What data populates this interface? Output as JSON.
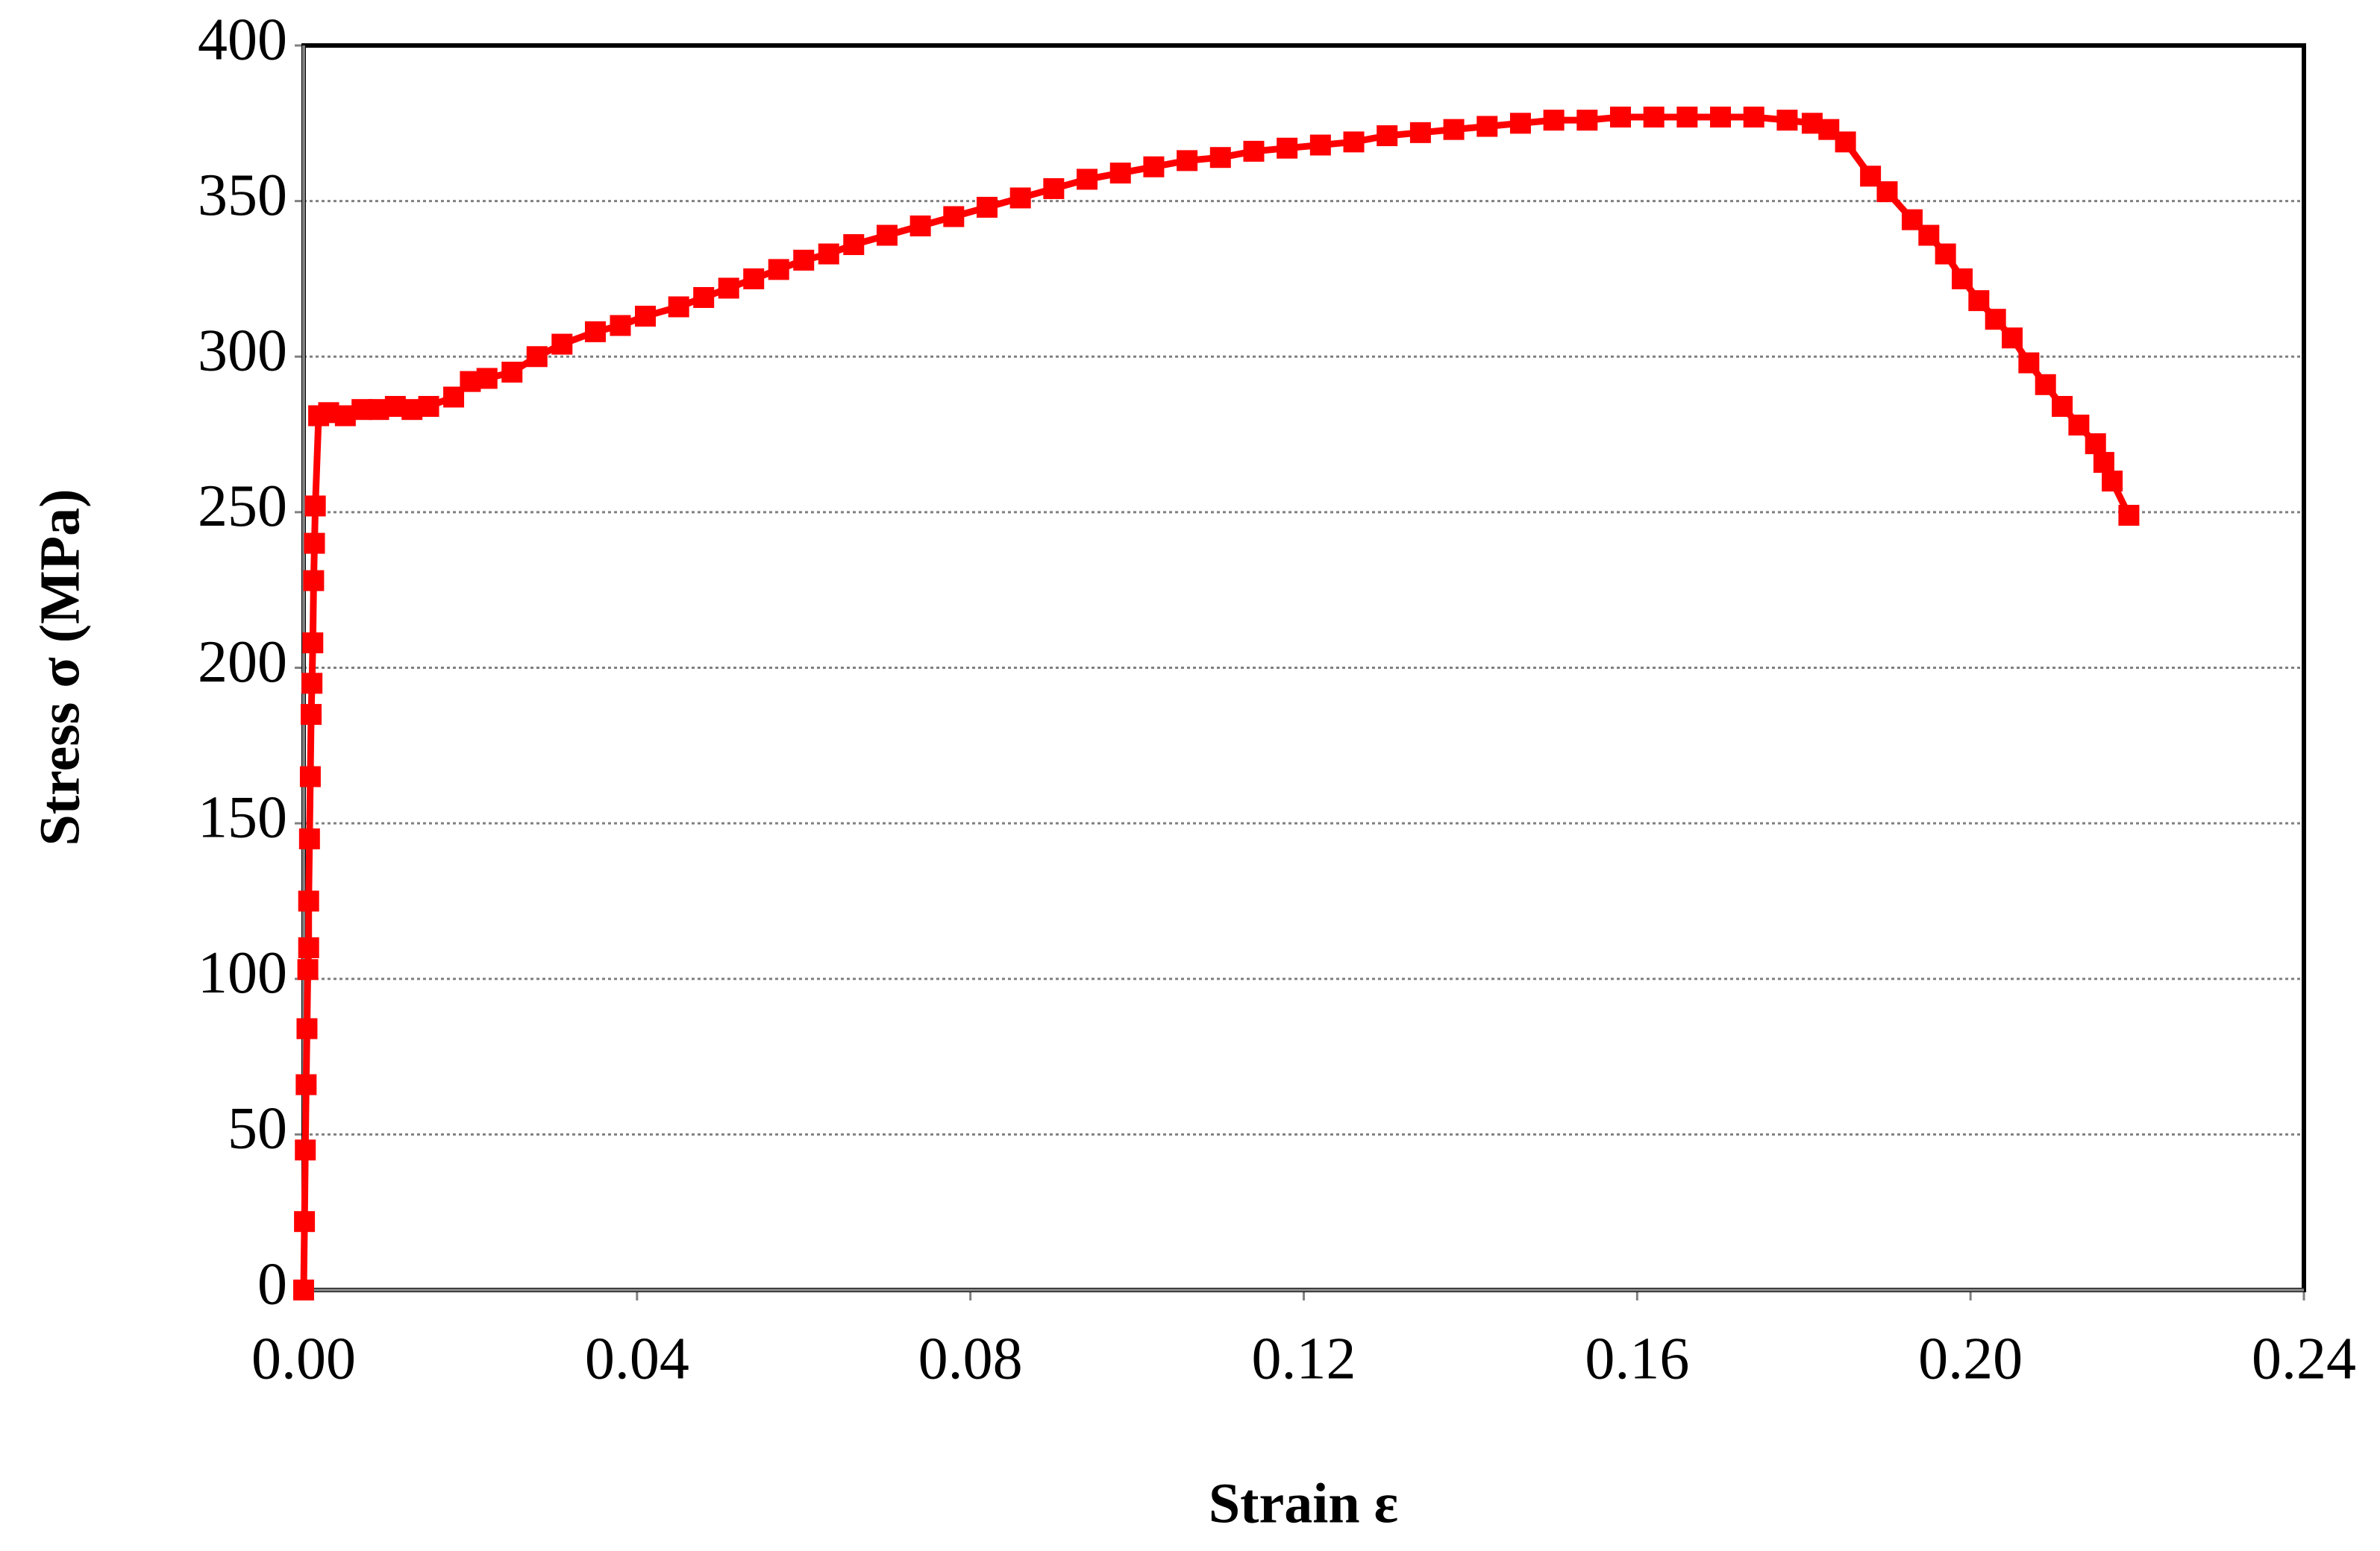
{
  "chart_data": {
    "type": "line",
    "x_label": "Strain  ε",
    "y_label": "Stress   σ (MPa)",
    "x": [
      0,
      0.0001,
      0.0002,
      0.0003,
      0.0004,
      0.0005,
      0.0006,
      0.0006,
      0.0007,
      0.0008,
      0.0009,
      0.001,
      0.0011,
      0.0012,
      0.0013,
      0.0014,
      0.0018,
      0.003,
      0.005,
      0.007,
      0.009,
      0.011,
      0.013,
      0.015,
      0.018,
      0.02,
      0.022,
      0.025,
      0.028,
      0.031,
      0.035,
      0.038,
      0.041,
      0.045,
      0.048,
      0.051,
      0.054,
      0.057,
      0.06,
      0.063,
      0.066,
      0.07,
      0.074,
      0.078,
      0.082,
      0.086,
      0.09,
      0.094,
      0.098,
      0.102,
      0.106,
      0.11,
      0.114,
      0.118,
      0.122,
      0.126,
      0.13,
      0.134,
      0.138,
      0.142,
      0.146,
      0.15,
      0.154,
      0.158,
      0.162,
      0.166,
      0.17,
      0.174,
      0.178,
      0.181,
      0.183,
      0.185,
      0.188,
      0.19,
      0.193,
      0.195,
      0.197,
      0.199,
      0.201,
      0.203,
      0.205,
      0.207,
      0.209,
      0.211,
      0.213,
      0.215,
      0.216,
      0.217,
      0.219
    ],
    "series": [
      {
        "name": "Stress",
        "color": "#ff0000",
        "values": [
          0,
          22,
          45,
          66,
          84,
          103,
          110,
          125,
          145,
          165,
          185,
          195,
          208,
          228,
          240,
          252,
          281,
          282,
          281,
          283,
          283,
          284,
          283,
          284,
          287,
          292,
          293,
          295,
          300,
          304,
          308,
          310,
          313,
          316,
          319,
          322,
          325,
          328,
          331,
          333,
          336,
          339,
          342,
          345,
          348,
          351,
          354,
          357,
          359,
          361,
          363,
          364,
          366,
          367,
          368,
          369,
          371,
          372,
          373,
          374,
          375,
          376,
          376,
          377,
          377,
          377,
          377,
          377,
          376,
          375,
          373,
          369,
          358,
          353,
          344,
          339,
          333,
          325,
          318,
          312,
          306,
          298,
          291,
          284,
          278,
          272,
          266,
          260,
          249
        ]
      }
    ],
    "xlim": [
      0,
      0.24
    ],
    "xticks": [
      {
        "value": 0,
        "label": "0.00"
      },
      {
        "value": 0.04,
        "label": "0.04"
      },
      {
        "value": 0.08,
        "label": "0.08"
      },
      {
        "value": 0.12,
        "label": "0.12"
      },
      {
        "value": 0.16,
        "label": "0.16"
      },
      {
        "value": 0.2,
        "label": "0.20"
      },
      {
        "value": 0.24,
        "label": "0.24"
      }
    ],
    "ylim": [
      0,
      400
    ],
    "yticks": [
      0,
      50,
      100,
      150,
      200,
      250,
      300,
      350,
      400
    ],
    "grid": true
  }
}
